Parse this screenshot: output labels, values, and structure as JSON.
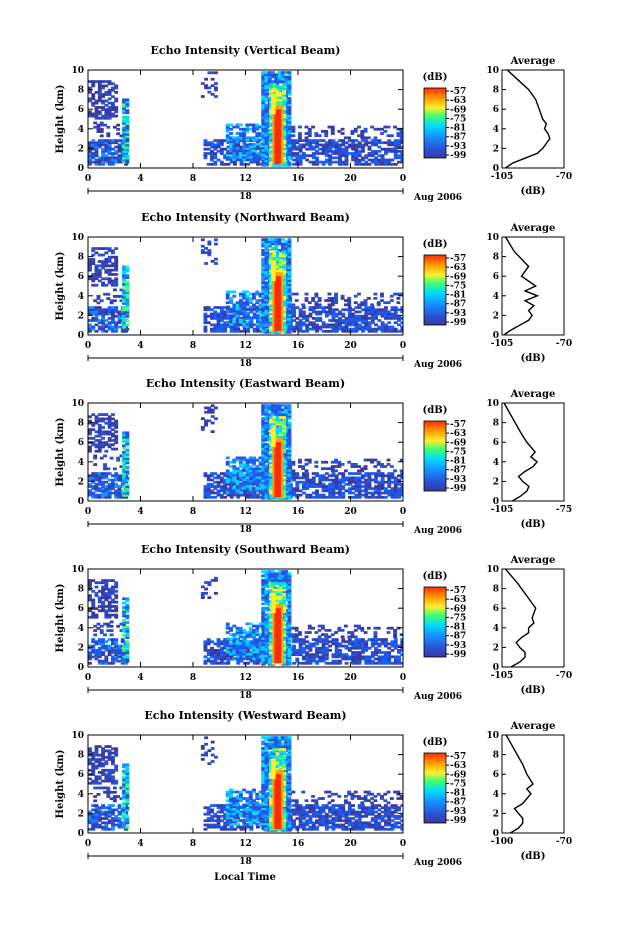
{
  "figure": {
    "xlabel": "Local Time",
    "ylabel": "Height (km)",
    "x_ticks": [
      "0",
      "4",
      "8",
      "12",
      "16",
      "20",
      "0"
    ],
    "y_ticks": [
      "0",
      "2",
      "4",
      "6",
      "8",
      "10"
    ],
    "date_label": "Aug 2006",
    "day_marker": "18",
    "colorbar_unit": "(dB)",
    "colorbar_ticks": [
      "-57",
      "-63",
      "-69",
      "-75",
      "-81",
      "-87",
      "-93",
      "-99"
    ],
    "profile_title": "Average",
    "profile_xlabel": "(dB)",
    "colors": {
      "red": "#ff2a0a",
      "orange": "#ffa000",
      "yellow": "#ffee30",
      "green": "#40ff70",
      "cyan": "#00d8ff",
      "blue": "#1560ff",
      "navy": "#3a3aa0"
    }
  },
  "chart_data": [
    {
      "type": "heatmap",
      "title": "Echo Intensity (Vertical Beam)",
      "xlabel": "Local Time",
      "ylabel": "Height (km)",
      "xlim": [
        0,
        24
      ],
      "ylim": [
        0,
        10
      ],
      "zlim": [
        -99,
        -57
      ],
      "colorbar_label": "(dB)",
      "profile": {
        "type": "line",
        "title": "Average",
        "xlabel": "(dB)",
        "xticks": [
          "-105",
          "-70"
        ],
        "xlim": [
          -105,
          -70
        ],
        "ylim": [
          0,
          10
        ],
        "x": [
          -103,
          -99,
          -92,
          -85,
          -82,
          -80,
          -78,
          -79,
          -81,
          -80,
          -82,
          -84,
          -86,
          -90,
          -96,
          -102
        ],
        "y": [
          0,
          0.5,
          1,
          1.5,
          2,
          2.5,
          3,
          3.5,
          4,
          4.5,
          5,
          6,
          7,
          8,
          9,
          10
        ]
      }
    },
    {
      "type": "heatmap",
      "title": "Echo Intensity (Northward Beam)",
      "xlabel": "Local Time",
      "ylabel": "Height (km)",
      "xlim": [
        0,
        24
      ],
      "ylim": [
        0,
        10
      ],
      "zlim": [
        -99,
        -57
      ],
      "colorbar_label": "(dB)",
      "profile": {
        "type": "line",
        "title": "Average",
        "xlabel": "(dB)",
        "xticks": [
          "-105",
          "-70"
        ],
        "xlim": [
          -105,
          -70
        ],
        "ylim": [
          0,
          10
        ],
        "x": [
          -104,
          -100,
          -95,
          -90,
          -88,
          -90,
          -87,
          -92,
          -85,
          -92,
          -86,
          -94,
          -90,
          -98,
          -103
        ],
        "y": [
          0,
          0.5,
          1,
          1.5,
          2,
          2.5,
          3,
          3.5,
          4,
          4.5,
          5,
          6,
          7,
          8.5,
          10
        ]
      }
    },
    {
      "type": "heatmap",
      "title": "Echo Intensity (Eastward Beam)",
      "xlabel": "Local Time",
      "ylabel": "Height (km)",
      "xlim": [
        0,
        24
      ],
      "ylim": [
        0,
        10
      ],
      "zlim": [
        -99,
        -57
      ],
      "colorbar_label": "(dB)",
      "profile": {
        "type": "line",
        "title": "Average",
        "xlabel": "(dB)",
        "xticks": [
          "-105",
          "-75"
        ],
        "xlim": [
          -105,
          -75
        ],
        "ylim": [
          0,
          10
        ],
        "x": [
          -100,
          -96,
          -93,
          -92,
          -95,
          -97,
          -94,
          -90,
          -88,
          -91,
          -89,
          -93,
          -96,
          -100,
          -104
        ],
        "y": [
          0,
          0.5,
          1,
          1.5,
          2,
          2.5,
          3,
          3.5,
          4,
          4.5,
          5,
          6,
          7,
          8.5,
          10
        ]
      }
    },
    {
      "type": "heatmap",
      "title": "Echo Intensity (Southward Beam)",
      "xlabel": "Local Time",
      "ylabel": "Height (km)",
      "xlim": [
        0,
        24
      ],
      "ylim": [
        0,
        10
      ],
      "zlim": [
        -99,
        -57
      ],
      "colorbar_label": "(dB)",
      "profile": {
        "type": "line",
        "title": "Average",
        "xlabel": "(dB)",
        "xticks": [
          "-105",
          "-70"
        ],
        "xlim": [
          -105,
          -70
        ],
        "ylim": [
          0,
          10
        ],
        "x": [
          -100,
          -95,
          -92,
          -92,
          -95,
          -97,
          -94,
          -90,
          -90,
          -87,
          -88,
          -86,
          -90,
          -96,
          -103
        ],
        "y": [
          0,
          0.5,
          1,
          1.5,
          2,
          2.5,
          3,
          3.5,
          4,
          4.5,
          5,
          6,
          7,
          8.5,
          10
        ]
      }
    },
    {
      "type": "heatmap",
      "title": "Echo Intensity (Westward Beam)",
      "xlabel": "Local Time",
      "ylabel": "Height (km)",
      "xlim": [
        0,
        24
      ],
      "ylim": [
        0,
        10
      ],
      "zlim": [
        -99,
        -57
      ],
      "colorbar_label": "(dB)",
      "profile": {
        "type": "line",
        "title": "Average",
        "xlabel": "(dB)",
        "xticks": [
          "-100",
          "-70"
        ],
        "xlim": [
          -100,
          -70
        ],
        "ylim": [
          0,
          10
        ],
        "x": [
          -96,
          -92,
          -90,
          -90,
          -92,
          -94,
          -90,
          -88,
          -86,
          -88,
          -85,
          -88,
          -90,
          -94,
          -98
        ],
        "y": [
          0,
          0.5,
          1,
          1.5,
          2,
          2.5,
          3,
          3.5,
          4,
          4.5,
          5,
          6,
          7,
          8.5,
          10
        ]
      }
    }
  ]
}
